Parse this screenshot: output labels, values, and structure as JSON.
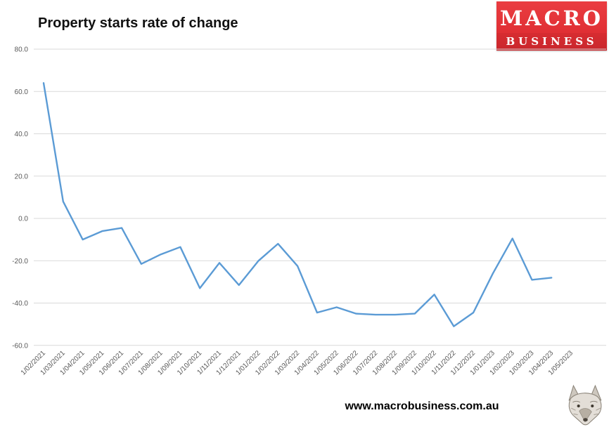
{
  "title": "Property starts rate of change",
  "logo": {
    "line1": "MACRO",
    "line2": "BUSINESS"
  },
  "footer": {
    "url": "www.macrobusiness.com.au"
  },
  "chart_data": {
    "type": "line",
    "title": "Property starts rate of change",
    "categories": [
      "1/02/2021",
      "1/03/2021",
      "1/04/2021",
      "1/05/2021",
      "1/06/2021",
      "1/07/2021",
      "1/08/2021",
      "1/09/2021",
      "1/10/2021",
      "1/11/2021",
      "1/12/2021",
      "1/01/2022",
      "1/02/2022",
      "1/03/2022",
      "1/04/2022",
      "1/05/2022",
      "1/06/2022",
      "1/07/2022",
      "1/08/2022",
      "1/09/2022",
      "1/10/2022",
      "1/11/2022",
      "1/12/2022",
      "1/01/2023",
      "1/02/2023",
      "1/03/2023",
      "1/04/2023",
      "1/05/2023"
    ],
    "values": [
      64,
      8,
      -10,
      -6,
      -4.5,
      -21.5,
      -17,
      -13.5,
      -33,
      -21,
      -31.5,
      -20,
      -12,
      -22.5,
      -44.5,
      -42,
      -45,
      -45.5,
      -45.5,
      -45,
      -36,
      -51,
      -44.5,
      -26,
      -9.5,
      -29,
      -28,
      null
    ],
    "xlabel": "",
    "ylabel": "",
    "ylim": [
      -60,
      80
    ],
    "yticks": [
      80,
      60,
      40,
      20,
      0,
      -20,
      -40,
      -60
    ],
    "grid": true,
    "legend": "none",
    "line_color": "#5B9BD5",
    "grid_color": "#d9d9d9",
    "tick_label_color": "#595959"
  }
}
